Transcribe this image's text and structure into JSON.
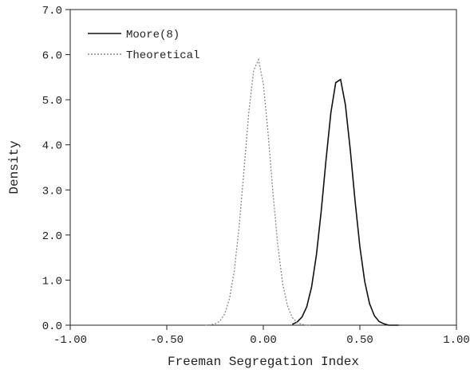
{
  "chart_data": {
    "type": "line",
    "x_label": "Freeman Segregation Index",
    "y_label": "Density",
    "xlim": [
      -1.0,
      1.0
    ],
    "ylim": [
      0,
      7
    ],
    "xticks": [
      {
        "value": -1.0,
        "label": "-1.00"
      },
      {
        "value": -0.5,
        "label": "-0.50"
      },
      {
        "value": 0,
        "label": "0.00"
      },
      {
        "value": 0.5,
        "label": "0.50"
      },
      {
        "value": 1.0,
        "label": "1.00"
      }
    ],
    "yticks": [
      {
        "value": 0,
        "label": "0.0"
      },
      {
        "value": 1,
        "label": "1.0"
      },
      {
        "value": 2,
        "label": "2.0"
      },
      {
        "value": 3,
        "label": "3.0"
      },
      {
        "value": 4,
        "label": "4.0"
      },
      {
        "value": 5,
        "label": "5.0"
      },
      {
        "value": 6,
        "label": "6.0"
      },
      {
        "value": 7,
        "label": "7.0"
      }
    ],
    "legend": "upper left",
    "series": [
      {
        "name": "Moore(8)",
        "color": "#111111",
        "style": "solid",
        "x": [
          0.15,
          0.175,
          0.2,
          0.225,
          0.25,
          0.275,
          0.3,
          0.325,
          0.35,
          0.375,
          0.4,
          0.425,
          0.45,
          0.475,
          0.5,
          0.525,
          0.55,
          0.575,
          0.6,
          0.625,
          0.65,
          0.675,
          0.7
        ],
        "values": [
          0.02,
          0.07,
          0.18,
          0.41,
          0.85,
          1.56,
          2.54,
          3.68,
          4.72,
          5.38,
          5.45,
          4.89,
          3.9,
          2.76,
          1.74,
          0.97,
          0.48,
          0.21,
          0.08,
          0.03,
          0,
          0,
          0
        ]
      },
      {
        "name": "Theoretical",
        "color": "#888888",
        "style": "dotted",
        "x": [
          -0.3,
          -0.275,
          -0.25,
          -0.225,
          -0.2,
          -0.175,
          -0.15,
          -0.125,
          -0.1,
          -0.075,
          -0.05,
          -0.025,
          0,
          0.025,
          0.05,
          0.075,
          0.1,
          0.125,
          0.15,
          0.175,
          0.2,
          0.225,
          0.25
        ],
        "values": [
          0,
          0.01,
          0.03,
          0.09,
          0.25,
          0.59,
          1.22,
          2.2,
          3.45,
          4.73,
          5.65,
          5.89,
          5.35,
          4.24,
          2.93,
          1.77,
          0.93,
          0.43,
          0.17,
          0.06,
          0.02,
          0,
          0
        ]
      }
    ]
  }
}
